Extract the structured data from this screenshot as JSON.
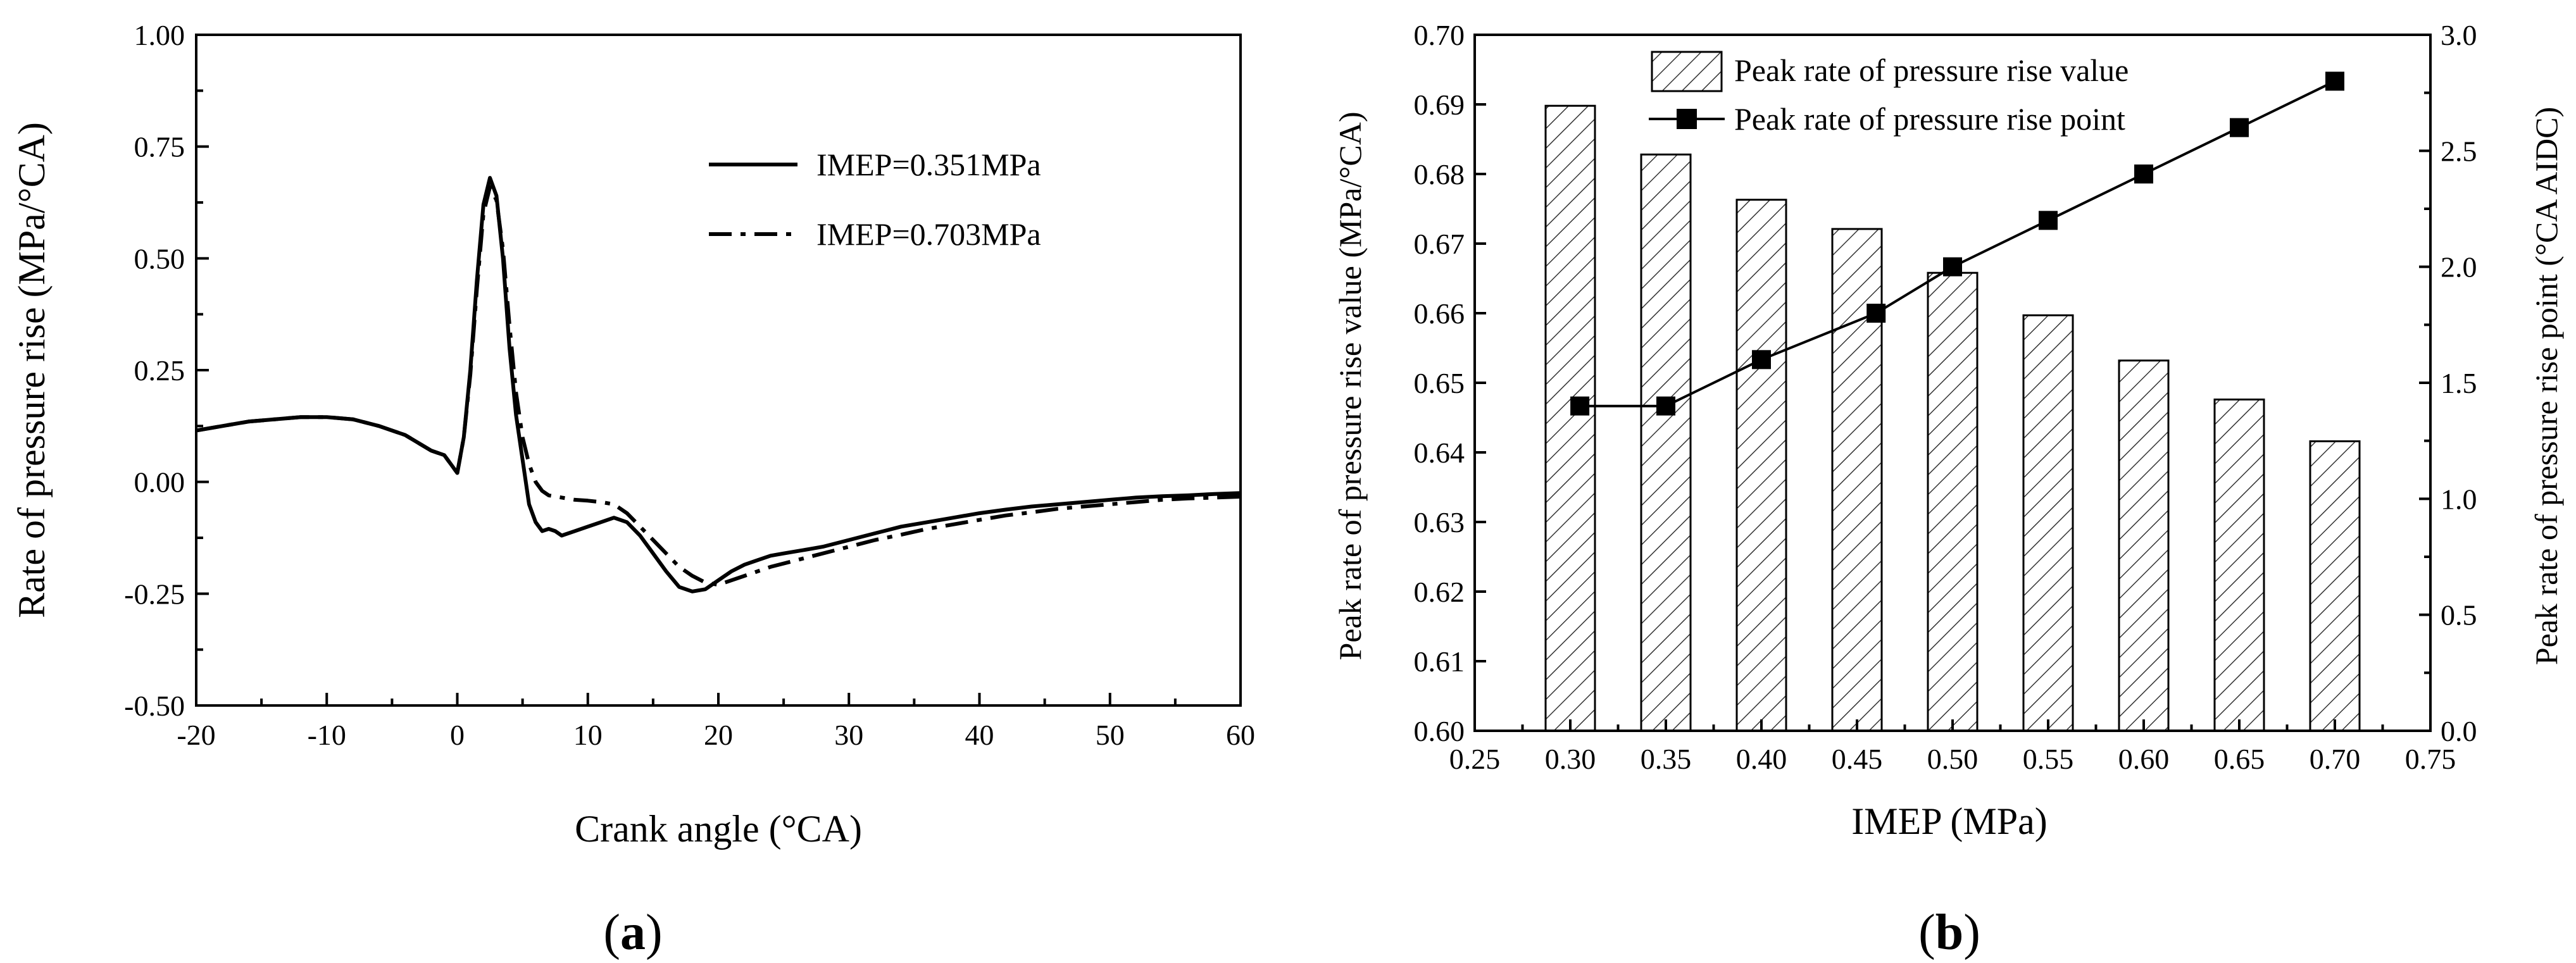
{
  "chart_data": [
    {
      "type": "line",
      "panel_label": "a",
      "title": "",
      "xlabel": "Crank angle (°CA)",
      "ylabel": "Rate of pressure rise (MPa/°CA)",
      "xlim": [
        -20,
        60
      ],
      "ylim": [
        -0.5,
        1.0
      ],
      "xticks": [
        "-20",
        "-10",
        "0",
        "10",
        "20",
        "30",
        "40",
        "50",
        "60"
      ],
      "yticks": [
        "-0.50",
        "-0.25",
        "0.00",
        "0.25",
        "0.50",
        "0.75",
        "1.00"
      ],
      "legend_position": "upper-right",
      "grid": false,
      "series": [
        {
          "name": "IMEP=0.351MPa",
          "style": "solid",
          "x": [
            -20,
            -16,
            -12,
            -10,
            -8,
            -6,
            -4,
            -2,
            -1,
            -0.5,
            0,
            0.5,
            1,
            1.5,
            2,
            2.5,
            3,
            3.5,
            4,
            4.5,
            5,
            5.5,
            6,
            6.5,
            7,
            7.5,
            8,
            9,
            10,
            11,
            12,
            13,
            14,
            15,
            16,
            17,
            18,
            19,
            20,
            21,
            22,
            23,
            24,
            25,
            26,
            27,
            28,
            30,
            32,
            34,
            36,
            38,
            40,
            42,
            44,
            46,
            48,
            50,
            52,
            54,
            56,
            58,
            60
          ],
          "y": [
            0.115,
            0.135,
            0.145,
            0.145,
            0.14,
            0.125,
            0.105,
            0.07,
            0.06,
            0.04,
            0.02,
            0.1,
            0.25,
            0.45,
            0.62,
            0.68,
            0.64,
            0.5,
            0.3,
            0.15,
            0.05,
            -0.05,
            -0.09,
            -0.11,
            -0.105,
            -0.11,
            -0.12,
            -0.11,
            -0.1,
            -0.09,
            -0.08,
            -0.09,
            -0.12,
            -0.16,
            -0.2,
            -0.235,
            -0.245,
            -0.24,
            -0.22,
            -0.2,
            -0.185,
            -0.175,
            -0.165,
            -0.16,
            -0.155,
            -0.15,
            -0.145,
            -0.13,
            -0.115,
            -0.1,
            -0.09,
            -0.08,
            -0.07,
            -0.062,
            -0.055,
            -0.05,
            -0.045,
            -0.04,
            -0.035,
            -0.032,
            -0.03,
            -0.027,
            -0.025
          ]
        },
        {
          "name": "IMEP=0.703MPa",
          "style": "dashdot",
          "x": [
            -20,
            -16,
            -12,
            -10,
            -8,
            -6,
            -4,
            -2,
            -1,
            -0.5,
            0,
            0.5,
            1,
            1.5,
            2,
            2.5,
            3,
            3.5,
            4,
            4.5,
            5,
            5.5,
            6,
            6.5,
            7,
            8,
            9,
            10,
            11,
            12,
            13,
            14,
            15,
            16,
            17,
            18,
            19,
            20,
            22,
            24,
            26,
            28,
            30,
            32,
            34,
            36,
            38,
            40,
            42,
            44,
            46,
            48,
            50,
            52,
            54,
            56,
            58,
            60
          ],
          "y": [
            0.115,
            0.135,
            0.145,
            0.145,
            0.14,
            0.125,
            0.105,
            0.07,
            0.06,
            0.04,
            0.02,
            0.1,
            0.24,
            0.43,
            0.6,
            0.66,
            0.63,
            0.52,
            0.35,
            0.2,
            0.1,
            0.04,
            0.0,
            -0.02,
            -0.03,
            -0.035,
            -0.04,
            -0.042,
            -0.045,
            -0.05,
            -0.07,
            -0.1,
            -0.13,
            -0.16,
            -0.19,
            -0.21,
            -0.225,
            -0.23,
            -0.21,
            -0.19,
            -0.175,
            -0.16,
            -0.145,
            -0.13,
            -0.118,
            -0.105,
            -0.095,
            -0.085,
            -0.075,
            -0.068,
            -0.06,
            -0.055,
            -0.05,
            -0.045,
            -0.04,
            -0.037,
            -0.035,
            -0.033
          ]
        }
      ]
    },
    {
      "type": "bar+line",
      "panel_label": "b",
      "title": "",
      "xlabel": "IMEP (MPa)",
      "ylabel_left": "Peak rate of pressure rise value (MPa/°CA)",
      "ylabel_right": "Peak rate of pressure rise point (°CA AIDC)",
      "xlim": [
        0.25,
        0.75
      ],
      "ylim_left": [
        0.6,
        0.7
      ],
      "ylim_right": [
        0.0,
        3.0
      ],
      "xticks": [
        "0.25",
        "0.30",
        "0.35",
        "0.40",
        "0.45",
        "0.50",
        "0.55",
        "0.60",
        "0.65",
        "0.70",
        "0.75"
      ],
      "yticks_left": [
        "0.60",
        "0.61",
        "0.62",
        "0.63",
        "0.64",
        "0.65",
        "0.66",
        "0.67",
        "0.68",
        "0.69",
        "0.70"
      ],
      "yticks_right": [
        "0.0",
        "0.5",
        "1.0",
        "1.5",
        "2.0",
        "2.5",
        "3.0"
      ],
      "legend_position": "top-center",
      "grid": false,
      "bars": {
        "name": "Peak rate of pressure rise value",
        "x": [
          0.3,
          0.35,
          0.4,
          0.45,
          0.5,
          0.55,
          0.6,
          0.65,
          0.7
        ],
        "values": [
          0.6898,
          0.6828,
          0.6763,
          0.6721,
          0.6658,
          0.6597,
          0.6532,
          0.6476,
          0.6416
        ]
      },
      "line": {
        "name": "Peak rate of pressure rise point",
        "x": [
          0.305,
          0.35,
          0.4,
          0.46,
          0.5,
          0.55,
          0.6,
          0.65,
          0.7
        ],
        "values": [
          1.4,
          1.4,
          1.6,
          1.8,
          2.0,
          2.2,
          2.4,
          2.6,
          2.8
        ]
      }
    }
  ]
}
